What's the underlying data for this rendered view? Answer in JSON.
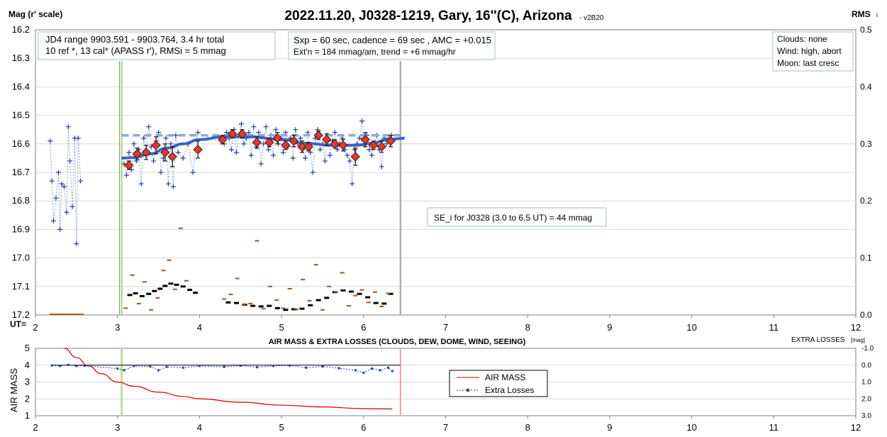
{
  "header": {
    "title": "2022.11.20, J0328-1219, Gary, 16''(C), Arizona",
    "version": "- v2B20",
    "ylabel_left": "Mag (r' scale)",
    "ylabel_right": "RMS",
    "ylabel_right_suffix": "i",
    "ut_label": "UT="
  },
  "info_boxes": {
    "left_line1": "JD4 range 9903.591 - 9903.764, 3.4 hr total",
    "left_line2": "10 ref *, 13 cal*  (APASS r'), RMSi = 5 mmag",
    "mid_line1": "Sxp = 60 sec, cadence = 69 sec , AMC = +0.015",
    "mid_line2": "Ext'n = 184 mmag/am, trend = +6 mmag/hr",
    "right_line1": "Clouds: none",
    "right_line2": "Wind: high, abort",
    "right_line3": "Moon: last cresc",
    "se_note": "SE_i for J0328 (3.0 to 6.5 UT) = 44 mmag"
  },
  "lower_panel": {
    "title": "AIR MASS & EXTRA LOSSES (CLOUDS, DEW, DOME, WIND, SEEING)",
    "ylabel": "AIR MASS",
    "ylabel_right": "EXTRA LOSSES",
    "ylabel_right_unit": "[mag]",
    "legend_airmass": "AIR MASS",
    "legend_losses": "Extra Losses"
  },
  "colors": {
    "raw_points": "#1f3f9f",
    "fit_curve": "#3a63c8",
    "mean_line": "#8fa9dc",
    "binned_marker": "#e03a2a",
    "rms_black": "#000000",
    "rms_brown": "#a0561c",
    "airmass": "#cc0000",
    "losses": "#1f3f9f",
    "start_line": "#b5d98a",
    "end_line": "#b0b0b0",
    "end_line_lower": "#f4a0a0"
  },
  "chart_data": [
    {
      "type": "scatter",
      "panel": "upper",
      "title": "2022.11.20, J0328-1219, Gary, 16''(C), Arizona",
      "xlabel": "UT",
      "ylabel": "Mag (r' scale)",
      "ylabel_right": "RMS i",
      "xlim": [
        2,
        12
      ],
      "ylim": [
        17.2,
        16.2
      ],
      "ylim_right": [
        0,
        0.5
      ],
      "x_ticks": [
        "2",
        "3",
        "4",
        "5",
        "6",
        "7",
        "8",
        "9",
        "10",
        "11",
        "12"
      ],
      "y_ticks": [
        "16.2",
        "16.3",
        "16.4",
        "16.5",
        "16.6",
        "16.7",
        "16.8",
        "16.9",
        "17.0",
        "17.1",
        "17.2"
      ],
      "y_right_ticks": [
        "0.5",
        "0.4",
        "0.3",
        "0.2",
        "0.1",
        "0.0"
      ],
      "start_ut": 3.05,
      "end_ut": 6.45,
      "mean_mag": 16.57,
      "series": [
        {
          "kind": "pre-session raw",
          "x": [
            2.18,
            2.2,
            2.22,
            2.25,
            2.28,
            2.3,
            2.32,
            2.35,
            2.38,
            2.4,
            2.42,
            2.45,
            2.48,
            2.5,
            2.52,
            2.55
          ],
          "y": [
            16.59,
            16.73,
            16.87,
            16.79,
            16.7,
            16.9,
            16.74,
            16.75,
            16.84,
            16.54,
            16.66,
            16.82,
            16.58,
            16.95,
            16.58,
            16.73
          ]
        },
        {
          "kind": "raw",
          "x": [
            3.08,
            3.11,
            3.14,
            3.17,
            3.2,
            3.23,
            3.26,
            3.29,
            3.32,
            3.35,
            3.38,
            3.41,
            3.44,
            3.47,
            3.5,
            3.53,
            3.56,
            3.59,
            3.62,
            3.65,
            3.68,
            3.71,
            3.74,
            3.8,
            3.86,
            3.92,
            3.98,
            4.3,
            4.33,
            4.36,
            4.39,
            4.42,
            4.45,
            4.48,
            4.51,
            4.54,
            4.57,
            4.6,
            4.63,
            4.66,
            4.69,
            4.72,
            4.75,
            4.78,
            4.81,
            4.84,
            4.87,
            4.9,
            4.93,
            4.96,
            4.99,
            5.02,
            5.05,
            5.08,
            5.11,
            5.14,
            5.17,
            5.2,
            5.23,
            5.26,
            5.29,
            5.32,
            5.35,
            5.38,
            5.41,
            5.44,
            5.47,
            5.5,
            5.53,
            5.56,
            5.59,
            5.62,
            5.65,
            5.68,
            5.71,
            5.74,
            5.77,
            5.8,
            5.83,
            5.86,
            5.89,
            5.92,
            5.95,
            5.98,
            6.01,
            6.04,
            6.07,
            6.1,
            6.13,
            6.16,
            6.19,
            6.22,
            6.25,
            6.28,
            6.31,
            6.34
          ],
          "y": [
            16.67,
            16.71,
            16.63,
            16.69,
            16.6,
            16.66,
            16.62,
            16.74,
            16.58,
            16.64,
            16.54,
            16.61,
            16.66,
            16.59,
            16.56,
            16.7,
            16.65,
            16.58,
            16.74,
            16.6,
            16.75,
            16.57,
            16.63,
            16.65,
            16.6,
            16.7,
            16.56,
            16.6,
            16.56,
            16.58,
            16.62,
            16.55,
            16.63,
            16.57,
            16.53,
            16.6,
            16.58,
            16.56,
            16.64,
            16.54,
            16.61,
            16.56,
            16.67,
            16.6,
            16.54,
            16.62,
            16.57,
            16.64,
            16.55,
            16.6,
            16.58,
            16.63,
            16.56,
            16.61,
            16.58,
            16.65,
            16.55,
            16.6,
            16.58,
            16.62,
            16.65,
            16.56,
            16.63,
            16.7,
            16.58,
            16.55,
            16.62,
            16.6,
            16.66,
            16.57,
            16.64,
            16.59,
            16.56,
            16.62,
            16.6,
            16.58,
            16.62,
            16.64,
            16.66,
            16.74,
            16.62,
            16.6,
            16.58,
            16.52,
            16.6,
            16.57,
            16.62,
            16.64,
            16.6,
            16.57,
            16.62,
            16.68,
            16.58,
            16.6,
            16.58,
            16.57
          ]
        },
        {
          "kind": "binned",
          "x": [
            3.14,
            3.24,
            3.35,
            3.47,
            3.58,
            3.67,
            3.98,
            4.28,
            4.4,
            4.52,
            4.7,
            4.85,
            4.95,
            5.05,
            5.15,
            5.25,
            5.33,
            5.45,
            5.55,
            5.65,
            5.75,
            5.9,
            6.02,
            6.12,
            6.22,
            6.33
          ],
          "y": [
            16.675,
            16.635,
            16.63,
            16.605,
            16.63,
            16.645,
            16.62,
            16.585,
            16.565,
            16.565,
            16.595,
            16.595,
            16.58,
            16.605,
            16.59,
            16.61,
            16.61,
            16.57,
            16.585,
            16.6,
            16.605,
            16.645,
            16.585,
            16.605,
            16.61,
            16.59
          ],
          "err": [
            0.015,
            0.02,
            0.025,
            0.03,
            0.03,
            0.035,
            0.03,
            0.015,
            0.015,
            0.015,
            0.02,
            0.015,
            0.02,
            0.015,
            0.02,
            0.02,
            0.015,
            0.015,
            0.02,
            0.015,
            0.02,
            0.03,
            0.025,
            0.015,
            0.02,
            0.02
          ]
        },
        {
          "kind": "fit",
          "x": [
            3.05,
            3.2,
            3.4,
            3.6,
            3.8,
            4.0,
            4.3,
            4.6,
            5.0,
            5.3,
            5.6,
            5.9,
            6.1,
            6.3,
            6.5
          ],
          "y": [
            16.65,
            16.648,
            16.635,
            16.615,
            16.6,
            16.585,
            16.575,
            16.575,
            16.585,
            16.598,
            16.605,
            16.605,
            16.598,
            16.585,
            16.58
          ]
        },
        {
          "kind": "rms-black",
          "x": [
            3.15,
            3.22,
            3.3,
            3.38,
            3.45,
            3.52,
            3.58,
            3.65,
            3.72,
            3.8,
            3.88,
            3.95,
            4.35,
            4.45,
            4.55,
            4.65,
            4.75,
            4.85,
            4.95,
            5.05,
            5.15,
            5.25,
            5.35,
            5.45,
            5.55,
            5.65,
            5.75,
            5.85,
            5.95,
            6.05,
            6.15,
            6.25,
            6.33
          ],
          "y": [
            0.035,
            0.038,
            0.033,
            0.037,
            0.042,
            0.046,
            0.051,
            0.055,
            0.053,
            0.05,
            0.044,
            0.039,
            0.022,
            0.021,
            0.018,
            0.016,
            0.015,
            0.016,
            0.012,
            0.009,
            0.01,
            0.011,
            0.017,
            0.026,
            0.03,
            0.04,
            0.043,
            0.041,
            0.037,
            0.031,
            0.021,
            0.02,
            0.037
          ]
        },
        {
          "kind": "rms-brown",
          "x": [
            3.1,
            3.18,
            3.26,
            3.33,
            3.41,
            3.49,
            3.56,
            3.63,
            3.7,
            3.77,
            3.84,
            4.3,
            4.38,
            4.46,
            4.54,
            4.62,
            4.7,
            4.78,
            4.86,
            4.94,
            5.02,
            5.1,
            5.18,
            5.26,
            5.34,
            5.42,
            5.5,
            5.58,
            5.66,
            5.74,
            5.82,
            5.9,
            5.98,
            6.06,
            6.14,
            6.22,
            6.3
          ],
          "y": [
            0.012,
            0.07,
            0.02,
            0.058,
            0.009,
            0.03,
            0.078,
            0.096,
            0.045,
            0.152,
            0.06,
            0.028,
            0.036,
            0.064,
            0.018,
            0.02,
            0.13,
            0.011,
            0.05,
            0.026,
            0.012,
            0.046,
            0.01,
            0.062,
            0.025,
            0.088,
            0.009,
            0.05,
            0.04,
            0.074,
            0.016,
            0.034,
            0.044,
            0.022,
            0.04,
            0.015,
            0.038
          ]
        }
      ]
    },
    {
      "type": "line",
      "panel": "lower",
      "title": "AIR MASS & EXTRA LOSSES (CLOUDS, DEW, DOME, WIND, SEEING)",
      "xlabel": "",
      "ylabel": "AIR MASS",
      "ylabel_right": "EXTRA LOSSES [mag]",
      "xlim": [
        2,
        12
      ],
      "ylim": [
        1,
        5
      ],
      "ylim_right": [
        3.0,
        -1.0
      ],
      "x_ticks": [
        "2",
        "3",
        "4",
        "5",
        "6",
        "7",
        "8",
        "9",
        "10",
        "11",
        "12"
      ],
      "y_ticks": [
        "5",
        "4",
        "3",
        "2",
        "1"
      ],
      "y_right_ticks": [
        "-1.0",
        "0.0",
        "1.0",
        "2.0",
        "3.0"
      ],
      "series": [
        {
          "name": "AIR MASS",
          "x": [
            2.35,
            2.5,
            2.65,
            2.8,
            3.0,
            3.2,
            3.5,
            3.8,
            4.0,
            4.5,
            5.0,
            5.5,
            6.0,
            6.35
          ],
          "y": [
            5.0,
            4.45,
            3.95,
            3.5,
            3.0,
            2.75,
            2.4,
            2.15,
            2.0,
            1.8,
            1.63,
            1.52,
            1.42,
            1.4
          ]
        },
        {
          "name": "Extra Losses",
          "x": [
            2.2,
            2.3,
            2.4,
            2.5,
            2.6,
            3.0,
            3.08,
            3.2,
            3.4,
            3.5,
            3.6,
            3.8,
            4.0,
            4.3,
            4.5,
            4.7,
            4.9,
            5.1,
            5.3,
            5.5,
            5.7,
            5.9,
            6.0,
            6.1,
            6.2,
            6.3,
            6.35
          ],
          "y": [
            0.02,
            0.05,
            -0.02,
            0.05,
            0.03,
            0.2,
            0.3,
            0.05,
            0.08,
            0.3,
            0.1,
            0.15,
            0.05,
            0.1,
            0.03,
            0.12,
            0.05,
            0.02,
            0.15,
            0.08,
            0.18,
            0.3,
            0.45,
            0.2,
            0.3,
            0.15,
            0.35
          ]
        }
      ]
    }
  ]
}
